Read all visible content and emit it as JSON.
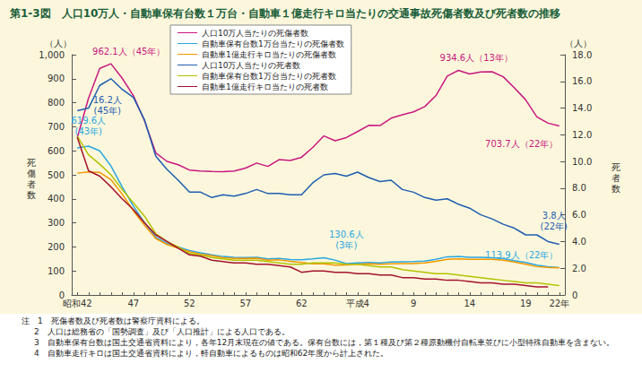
{
  "chart_data": {
    "type": "line",
    "title": "第1-3図　人口10万人・自動車保有台数１万台・自動車１億走行キロ当たりの交通事故死傷者数及び死者数の推移",
    "categories": [
      "昭和42",
      null,
      null,
      null,
      null,
      "47",
      null,
      null,
      null,
      null,
      "52",
      null,
      null,
      null,
      null,
      "57",
      null,
      null,
      null,
      null,
      "62",
      null,
      null,
      null,
      null,
      "平成4",
      null,
      null,
      null,
      null,
      "9",
      null,
      null,
      null,
      null,
      "14",
      null,
      null,
      null,
      null,
      "19",
      null,
      null,
      "22年"
    ],
    "series": [
      {
        "name": "人口10万人当たりの死傷者数",
        "color": "#c8177f",
        "values": [
          655,
          819,
          943,
          962.1,
          902,
          830,
          724,
          591,
          556,
          542,
          520,
          516,
          514,
          513,
          516,
          528,
          549,
          535,
          563,
          560,
          573,
          614,
          662,
          642,
          655,
          680,
          706,
          705,
          736,
          750,
          762,
          784,
          830,
          911,
          934.6,
          920,
          928,
          929,
          908,
          862,
          812,
          741,
          715,
          703.7
        ]
      },
      {
        "name": "自動車保有台数1万台当たりの死傷者数",
        "color": "#2aa6e0",
        "values": [
          612,
          619.6,
          600,
          537,
          450,
          370,
          300,
          240,
          215,
          200,
          185,
          175,
          167,
          160,
          157,
          156,
          157,
          150,
          152,
          147,
          146,
          150,
          155,
          145,
          130.6,
          133,
          135,
          133,
          137,
          138,
          139,
          141,
          148,
          159,
          160,
          157,
          157,
          155,
          151,
          143,
          135,
          124,
          118,
          113.9
        ]
      },
      {
        "name": "自動車1億走行キロ当たりの死傷者数",
        "color": "#f39800",
        "values": [
          507,
          512,
          510,
          480,
          420,
          350,
          290,
          235,
          210,
          195,
          180,
          170,
          163,
          155,
          152,
          152,
          153,
          145,
          146,
          140,
          135,
          130,
          130,
          124,
          125,
          128,
          130,
          128,
          130,
          131,
          131,
          133,
          140,
          148,
          150,
          148,
          148,
          148,
          145,
          137,
          128,
          118,
          115,
          113
        ]
      },
      {
        "name": "人口10万人当たりの死者数",
        "color": "#1f5db0",
        "axis": "y2",
        "values": [
          13.8,
          14.0,
          15.7,
          16.2,
          15.4,
          14.8,
          13.1,
          10.4,
          9.4,
          8.6,
          7.7,
          7.7,
          7.3,
          7.5,
          7.4,
          7.6,
          7.9,
          7.6,
          7.6,
          7.5,
          7.5,
          8.4,
          9.0,
          9.1,
          8.9,
          9.2,
          8.8,
          8.5,
          8.6,
          7.9,
          7.7,
          7.3,
          7.1,
          7.2,
          6.8,
          6.5,
          6.0,
          5.7,
          5.3,
          5.0,
          4.5,
          4.5,
          4.0,
          3.8
        ]
      },
      {
        "name": "自動車保有台数1万台当たりの死者数",
        "color": "#b3c300",
        "axis": "y2",
        "values": [
          11.9,
          10.5,
          9.8,
          9.0,
          7.9,
          6.9,
          5.9,
          4.6,
          4.0,
          3.6,
          3.1,
          3.0,
          2.8,
          2.7,
          2.6,
          2.6,
          2.6,
          2.5,
          2.4,
          2.3,
          2.3,
          2.4,
          2.4,
          2.4,
          2.3,
          2.3,
          2.2,
          2.1,
          2.1,
          1.9,
          1.8,
          1.7,
          1.6,
          1.6,
          1.5,
          1.4,
          1.3,
          1.2,
          1.1,
          1.0,
          0.9,
          0.9,
          0.8,
          0.7
        ]
      },
      {
        "name": "自動車1億走行キロ当たりの死者数",
        "color": "#a3122c",
        "axis": "y2",
        "values": [
          11.8,
          9.3,
          8.9,
          8.1,
          7.2,
          6.4,
          5.4,
          4.5,
          4.0,
          3.5,
          3.0,
          2.9,
          2.6,
          2.5,
          2.4,
          2.4,
          2.3,
          2.3,
          2.2,
          2.1,
          1.7,
          1.8,
          1.8,
          1.7,
          1.7,
          1.6,
          1.6,
          1.5,
          1.5,
          1.3,
          1.3,
          1.2,
          1.2,
          1.1,
          1.1,
          1.0,
          0.9,
          0.9,
          0.8,
          0.8,
          0.7,
          0.6,
          0.6,
          null
        ]
      }
    ],
    "ylabel": "死傷者数",
    "yunit": "（人）",
    "ylim": [
      0,
      1000
    ],
    "yticks": [
      0,
      100,
      200,
      300,
      400,
      500,
      600,
      700,
      800,
      900,
      {
        "value": 1000,
        "label": "1,000"
      }
    ],
    "y2label": "死者数",
    "y2unit": "（人）",
    "y2lim": [
      0,
      18
    ],
    "y2ticks": [
      0,
      {
        "value": 2,
        "label": "2.0"
      },
      {
        "value": 4,
        "label": "4.0"
      },
      {
        "value": 6,
        "label": "6.0"
      },
      {
        "value": 8,
        "label": "8.0"
      },
      {
        "value": 10,
        "label": "10.0"
      },
      {
        "value": 12,
        "label": "12.0"
      },
      {
        "value": 14,
        "label": "14.0"
      },
      {
        "value": 16,
        "label": "16.0"
      },
      {
        "value": 18,
        "label": "18.0"
      }
    ],
    "grid": false,
    "legend": "upper left",
    "annotations": [
      {
        "text": "962.1人（45年）",
        "series": 0,
        "value": 962.1
      },
      {
        "text": "16.2人\n(45年)",
        "series": 3,
        "value": 16.2
      },
      {
        "text": "619.6人\n(43年)",
        "series": 1,
        "value": 619.6
      },
      {
        "text": "934.6人（13年）",
        "series": 0,
        "value": 934.6
      },
      {
        "text": "703.7人（22年）",
        "series": 0,
        "value": 703.7
      },
      {
        "text": "130.6人\n(3年)",
        "series": 1,
        "value": 130.6
      },
      {
        "text": "113.9人（22年）",
        "series": 1,
        "value": 113.9
      },
      {
        "text": "3.8人\n(22年)",
        "series": 3,
        "value": 3.8
      }
    ],
    "notes": [
      "注　1　死傷者数及び死者数は警察庁資料による。",
      "2　人口は総務省の「国勢調査」及び「人口推計」による人口である。",
      "3　自動車保有台数は国土交通省資料により，各年12月末現在の値である。保有台数には，第１種及び第２種原動機付自転車並びに小型特殊自動車を含まない。",
      "4　自動車走行キロは国土交通省資料により，軽自動車によるものは昭和62年度から計上された。"
    ]
  }
}
